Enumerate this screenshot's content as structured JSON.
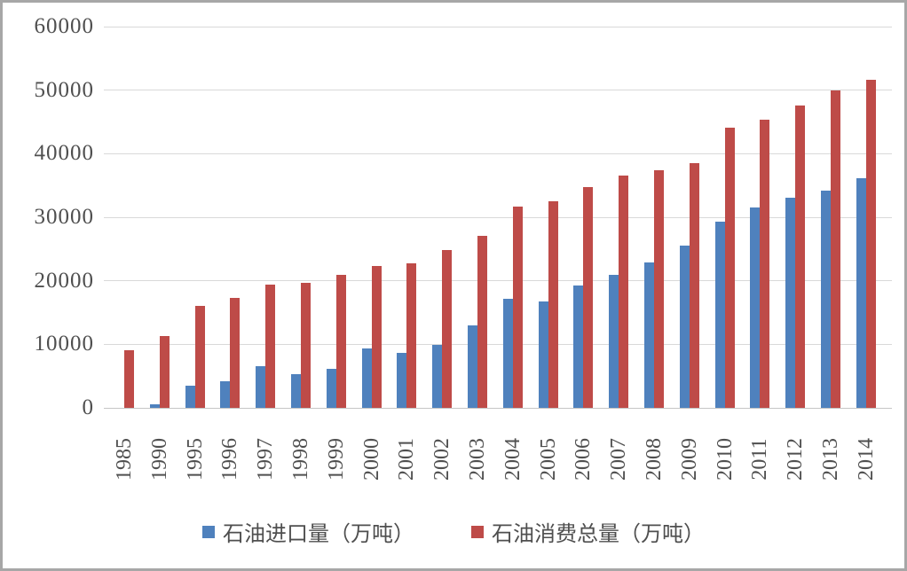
{
  "accent_colors": {
    "import_blue": "#4f81bd",
    "consumption_red": "#be4b48",
    "gridline": "#d9d9d9",
    "axis_line": "#c6c6c6",
    "label_text": "#4f4f4f",
    "outer_border": "#a7a7a7"
  },
  "legend": {
    "import_label": "石油进口量（万吨）",
    "consumption_label": "石油消费总量（万吨）"
  },
  "chart_data": {
    "type": "bar",
    "title": "",
    "xlabel": "",
    "ylabel": "",
    "ylim": [
      0,
      60000
    ],
    "ytick_interval": 10000,
    "yticks": [
      0,
      10000,
      20000,
      30000,
      40000,
      50000,
      60000
    ],
    "grid": "horizontal",
    "legend_position": "bottom",
    "categories": [
      "1985",
      "1990",
      "1995",
      "1996",
      "1997",
      "1998",
      "1999",
      "2000",
      "2001",
      "2002",
      "2003",
      "2004",
      "2005",
      "2006",
      "2007",
      "2008",
      "2009",
      "2010",
      "2011",
      "2012",
      "2013",
      "2014"
    ],
    "series": [
      {
        "name": "石油进口量（万吨）",
        "color": "#4f81bd",
        "values": [
          0,
          500,
          3500,
          4200,
          6500,
          5300,
          6200,
          9300,
          8700,
          9900,
          13000,
          17100,
          16800,
          19200,
          20900,
          22900,
          25600,
          29300,
          31600,
          33000,
          34200,
          36200
        ]
      },
      {
        "name": "石油消费总量（万吨）",
        "color": "#be4b48",
        "values": [
          9100,
          11300,
          16000,
          17300,
          19400,
          19700,
          20900,
          22300,
          22700,
          24800,
          27100,
          31700,
          32500,
          34800,
          36600,
          37400,
          38500,
          44100,
          45300,
          47600,
          49900,
          51600
        ]
      }
    ]
  }
}
